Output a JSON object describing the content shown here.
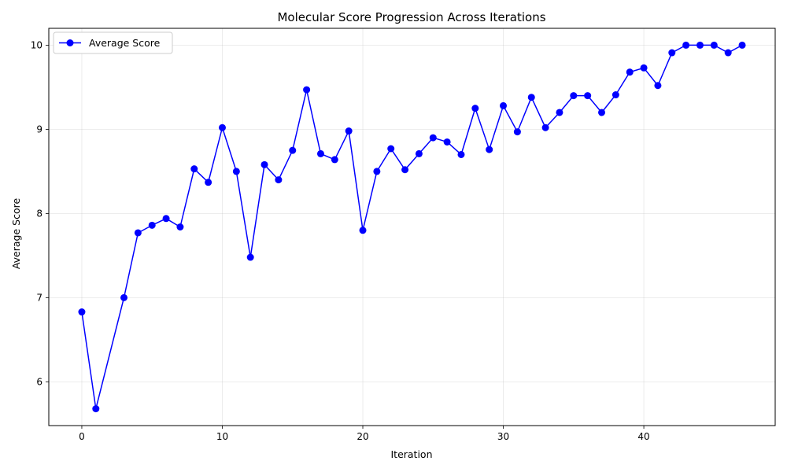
{
  "chart_data": {
    "type": "line",
    "title": "Molecular Score Progression Across Iterations",
    "xlabel": "Iteration",
    "ylabel": "Average Score",
    "xlim": [
      -2.35,
      49.35
    ],
    "ylim": [
      5.48,
      10.2
    ],
    "xticks": [
      0,
      10,
      20,
      30,
      40
    ],
    "yticks": [
      6,
      7,
      8,
      9,
      10
    ],
    "grid": true,
    "legend_position": "upper-left",
    "series": [
      {
        "name": "Average Score",
        "color": "#0000ff",
        "marker": "circle",
        "points": [
          [
            0,
            6.83
          ],
          [
            1,
            5.68
          ],
          [
            3,
            7.0
          ],
          [
            4,
            7.77
          ],
          [
            5,
            7.86
          ],
          [
            6,
            7.94
          ],
          [
            7,
            7.84
          ],
          [
            8,
            8.53
          ],
          [
            9,
            8.37
          ],
          [
            10,
            9.02
          ],
          [
            11,
            8.5
          ],
          [
            12,
            7.48
          ],
          [
            13,
            8.58
          ],
          [
            14,
            8.4
          ],
          [
            15,
            8.75
          ],
          [
            16,
            9.47
          ],
          [
            17,
            8.71
          ],
          [
            18,
            8.64
          ],
          [
            19,
            8.98
          ],
          [
            20,
            7.8
          ],
          [
            21,
            8.5
          ],
          [
            22,
            8.77
          ],
          [
            23,
            8.52
          ],
          [
            24,
            8.71
          ],
          [
            25,
            8.9
          ],
          [
            26,
            8.85
          ],
          [
            27,
            8.7
          ],
          [
            28,
            9.25
          ],
          [
            29,
            8.76
          ],
          [
            30,
            9.28
          ],
          [
            31,
            8.97
          ],
          [
            32,
            9.38
          ],
          [
            33,
            9.02
          ],
          [
            34,
            9.2
          ],
          [
            35,
            9.4
          ],
          [
            36,
            9.4
          ],
          [
            37,
            9.2
          ],
          [
            38,
            9.41
          ],
          [
            39,
            9.68
          ],
          [
            40,
            9.73
          ],
          [
            41,
            9.52
          ],
          [
            42,
            9.91
          ],
          [
            43,
            10.0
          ],
          [
            44,
            10.0
          ],
          [
            45,
            10.0
          ],
          [
            46,
            9.91
          ],
          [
            47,
            10.0
          ]
        ]
      }
    ]
  }
}
